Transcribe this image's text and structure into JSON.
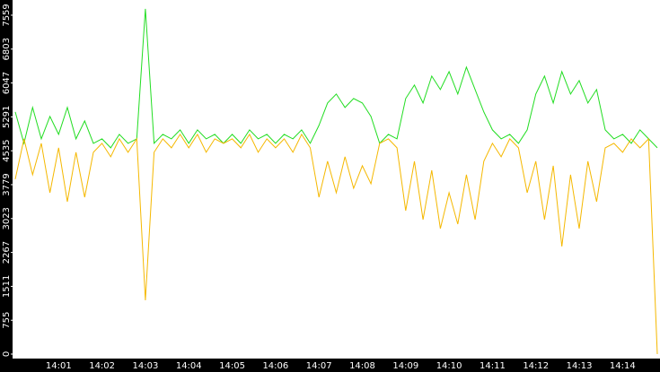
{
  "chart_data": {
    "type": "line",
    "categories": [
      null,
      null,
      null,
      null,
      null,
      "14:01",
      null,
      null,
      null,
      null,
      "14:02",
      null,
      null,
      null,
      null,
      "14:03",
      null,
      null,
      null,
      null,
      "14:04",
      null,
      null,
      null,
      null,
      "14:05",
      null,
      null,
      null,
      null,
      "14:06",
      null,
      null,
      null,
      null,
      "14:07",
      null,
      null,
      null,
      null,
      "14:08",
      null,
      null,
      null,
      null,
      "14:09",
      null,
      null,
      null,
      null,
      "14:10",
      null,
      null,
      null,
      null,
      "14:11",
      null,
      null,
      null,
      null,
      "14:12",
      null,
      null,
      null,
      null,
      "14:13",
      null,
      null,
      null,
      null,
      "14:14",
      null,
      null,
      null,
      null
    ],
    "series": [
      {
        "color": "#22dd22",
        "values": [
          5400,
          4700,
          5500,
          4800,
          5300,
          4900,
          5500,
          4800,
          5200,
          4700,
          4800,
          4600,
          4900,
          4700,
          4800,
          7700,
          4700,
          4900,
          4800,
          5000,
          4700,
          5000,
          4800,
          4900,
          4700,
          4900,
          4700,
          5000,
          4800,
          4900,
          4700,
          4900,
          4800,
          5000,
          4700,
          5100,
          5600,
          5800,
          5500,
          5700,
          5600,
          5300,
          4700,
          4900,
          4800,
          5700,
          6000,
          5600,
          6200,
          5900,
          6300,
          5800,
          6400,
          5900,
          5400,
          5000,
          4800,
          4900,
          4700,
          5000,
          5800,
          6200,
          5600,
          6300,
          5800,
          6100,
          5600,
          5900,
          5000,
          4800,
          4900,
          4700,
          5000,
          4800,
          4600
        ]
      },
      {
        "color": "#f5b800",
        "values": [
          3900,
          4800,
          4000,
          4700,
          3600,
          4600,
          3400,
          4500,
          3500,
          4500,
          4700,
          4400,
          4800,
          4500,
          4800,
          1200,
          4500,
          4800,
          4600,
          4900,
          4600,
          4900,
          4500,
          4800,
          4700,
          4800,
          4600,
          4900,
          4500,
          4800,
          4600,
          4800,
          4500,
          4900,
          4600,
          3500,
          4300,
          3600,
          4400,
          3700,
          4200,
          3800,
          4700,
          4800,
          4600,
          3200,
          4300,
          3000,
          4100,
          2800,
          3600,
          2900,
          4000,
          3000,
          4300,
          4700,
          4400,
          4800,
          4600,
          3600,
          4300,
          3000,
          4200,
          2400,
          4000,
          2800,
          4300,
          3400,
          4600,
          4700,
          4500,
          4800,
          4600,
          4800,
          0
        ]
      }
    ],
    "ylim": [
      -100,
      7898
    ],
    "yticks": [
      0,
      755,
      1511,
      2267,
      3023,
      3779,
      4535,
      5291,
      6047,
      6803,
      7559
    ],
    "grid": false
  }
}
